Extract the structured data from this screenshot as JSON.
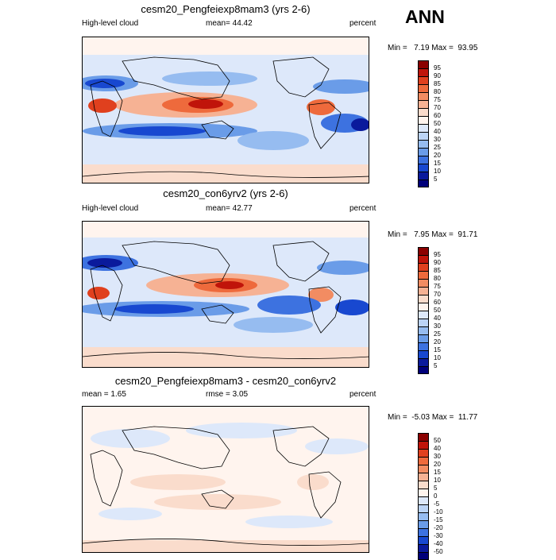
{
  "season": "ANN",
  "panels": [
    {
      "title": "cesm20_Pengfeiexp8mam3 (yrs 2-6)",
      "left_label": "High-level cloud",
      "center_label": "mean=  44.42",
      "right_label": "percent",
      "minmax": "Min =   7.19 Max =  93.95",
      "kind": "cloud",
      "levels": [
        "95",
        "90",
        "85",
        "80",
        "75",
        "70",
        "60",
        "50",
        "40",
        "30",
        "25",
        "20",
        "15",
        "10",
        "5"
      ]
    },
    {
      "title": "cesm20_con6yrv2 (yrs 2-6)",
      "left_label": "High-level cloud",
      "center_label": "mean=  42.77",
      "right_label": "percent",
      "minmax": "Min =   7.95 Max =  91.71",
      "kind": "cloud",
      "levels": [
        "95",
        "90",
        "85",
        "80",
        "75",
        "70",
        "60",
        "50",
        "40",
        "30",
        "25",
        "20",
        "15",
        "10",
        "5"
      ]
    },
    {
      "title": "cesm20_Pengfeiexp8mam3 - cesm20_con6yrv2",
      "left_label": "mean =   1.65",
      "center_label": "rmse =   3.05",
      "right_label": "percent",
      "minmax": "Min =  -5.03 Max =  11.77",
      "kind": "diff",
      "levels": [
        "50",
        "40",
        "30",
        "20",
        "15",
        "10",
        "5",
        "0",
        "-5",
        "-10",
        "-15",
        "-20",
        "-30",
        "-40",
        "-50"
      ]
    }
  ],
  "colors": {
    "scale": [
      "#8b0000",
      "#c0140a",
      "#e0401e",
      "#ee6a3c",
      "#f28c62",
      "#f6b294",
      "#fadccc",
      "#fff4ee",
      "#dde8fa",
      "#bcd4f6",
      "#96bcf0",
      "#6a9ce8",
      "#3d72e0",
      "#1848d0",
      "#0a1a9c",
      "#00007a"
    ]
  }
}
